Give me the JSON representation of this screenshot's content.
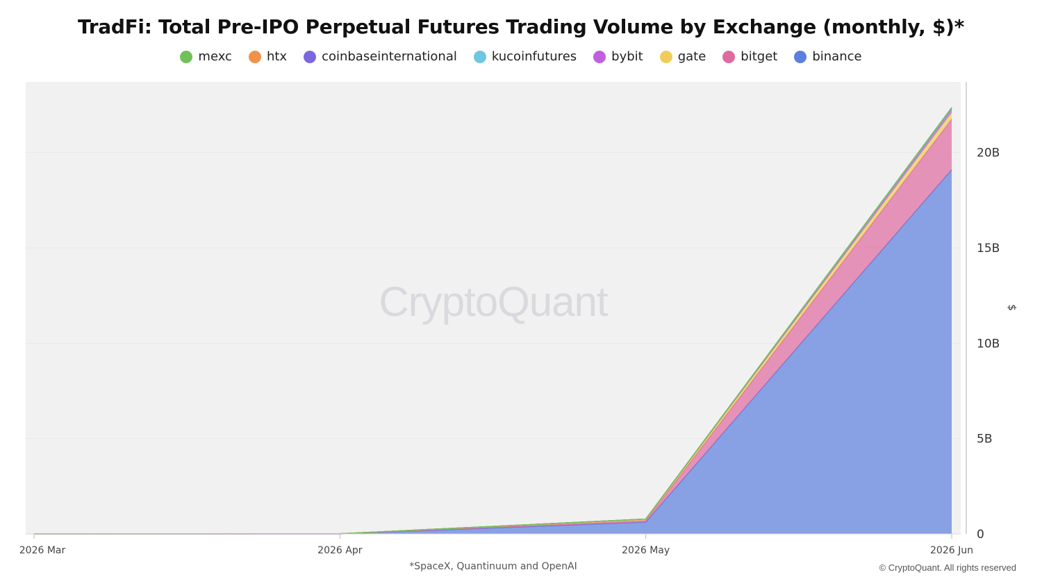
{
  "chart_data": {
    "type": "area",
    "stacked": true,
    "title": "TradFi: Total Pre-IPO Perpetual Futures Trading Volume by Exchange (monthly, $)*",
    "footnote": "*SpaceX, Quantinuum and OpenAI",
    "copyright": "© CryptoQuant. All rights reserved",
    "watermark": "CryptoQuant",
    "ylabel": "$",
    "ylim": [
      0,
      23700000000
    ],
    "y_axis_side": "right",
    "y_ticks": [
      {
        "value": 0,
        "label": "0"
      },
      {
        "value": 5000000000,
        "label": "5B"
      },
      {
        "value": 10000000000,
        "label": "10B"
      },
      {
        "value": 15000000000,
        "label": "15B"
      },
      {
        "value": 20000000000,
        "label": "20B"
      }
    ],
    "x": [
      "2026 Mar",
      "2026 Apr",
      "2026 May",
      "2026 Jun"
    ],
    "legend_placement": "top",
    "grid": true,
    "series": [
      {
        "name": "mexc",
        "color": "#72c05b",
        "values": [
          0,
          0,
          0,
          0
        ]
      },
      {
        "name": "htx",
        "color": "#f0924a",
        "values": [
          0,
          0,
          0,
          0
        ]
      },
      {
        "name": "coinbaseinternational",
        "color": "#7b68e0",
        "values": [
          0,
          0,
          0,
          50000000
        ]
      },
      {
        "name": "kucoinfutures",
        "color": "#6ec6e0",
        "values": [
          0,
          0,
          0,
          50000000
        ]
      },
      {
        "name": "bybit",
        "color": "#c060e0",
        "values": [
          0,
          0,
          0,
          150000000
        ]
      },
      {
        "name": "gate",
        "color": "#f0cd5a",
        "values": [
          0,
          10000000,
          80000000,
          350000000
        ]
      },
      {
        "name": "bitget",
        "color": "#e06aa0",
        "values": [
          0,
          0,
          80000000,
          2650000000
        ]
      },
      {
        "name": "binance",
        "color": "#5b7fe0",
        "values": [
          0,
          0,
          620000000,
          19100000000
        ]
      }
    ]
  }
}
